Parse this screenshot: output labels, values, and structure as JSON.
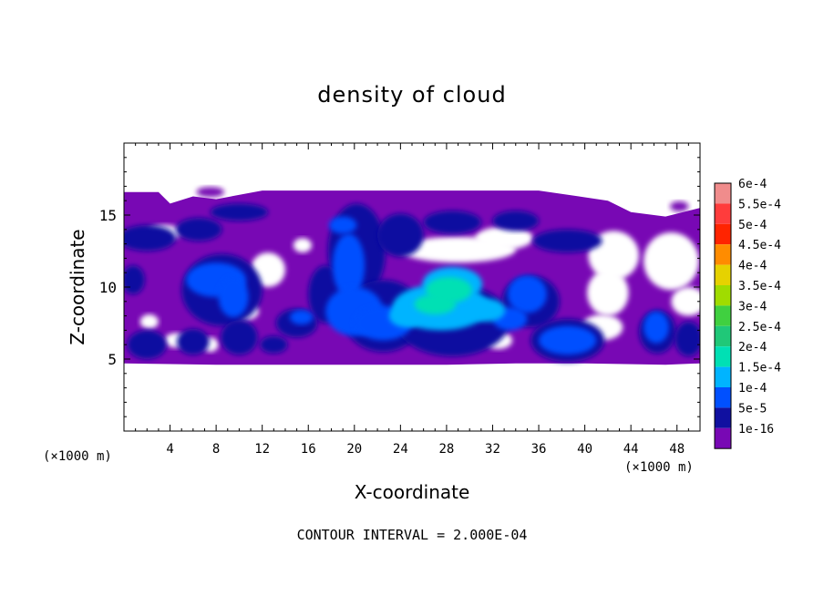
{
  "chart_data": {
    "type": "heatmap",
    "title": "density of cloud",
    "xlabel": "X-coordinate",
    "ylabel": "Z-coordinate",
    "x_unit_left": "(×1000 m)",
    "x_unit_right": "(×1000 m)",
    "xlim": [
      0,
      50
    ],
    "ylim": [
      0,
      20
    ],
    "x_ticks": [
      4,
      8,
      12,
      16,
      20,
      24,
      28,
      32,
      36,
      40,
      44,
      48
    ],
    "y_ticks": [
      5,
      10,
      15
    ],
    "footer": "CONTOUR INTERVAL = 2.000E-04",
    "colorbar": {
      "labels": [
        "6e-4",
        "5.5e-4",
        "5e-4",
        "4.5e-4",
        "4e-4",
        "3.5e-4",
        "3e-4",
        "2.5e-4",
        "2e-4",
        "1.5e-4",
        "1e-4",
        "5e-5",
        "1e-16"
      ],
      "values": [
        0.0006,
        0.00055,
        0.0005,
        0.00045,
        0.0004,
        0.00035,
        0.0003,
        0.00025,
        0.0002,
        0.00015,
        0.0001,
        5e-05,
        1e-16
      ],
      "colors": [
        "#f08c8c",
        "#ff3c3c",
        "#ff2400",
        "#ff8c00",
        "#e6d200",
        "#a0dc00",
        "#40d040",
        "#20c878",
        "#00e0b4",
        "#00b4ff",
        "#0050ff",
        "#1010a0",
        "#7808b4"
      ]
    },
    "features": [
      {
        "x": [
          0,
          50
        ],
        "z": [
          4.7,
          16.6
        ],
        "level": "1e-16"
      },
      {
        "x": [
          17,
          25
        ],
        "z": [
          4.8,
          15.5
        ],
        "level": "1e-4"
      },
      {
        "x": [
          22,
          33
        ],
        "z": [
          6.0,
          11.5
        ],
        "level": "1.5e-4"
      },
      {
        "x": [
          25,
          30
        ],
        "z": [
          7.0,
          10.5
        ],
        "level": "2e-4"
      },
      {
        "x": [
          5,
          11
        ],
        "z": [
          7.5,
          11.5
        ],
        "level": "1e-4"
      },
      {
        "x": [
          36,
          41
        ],
        "z": [
          4.8,
          7.8
        ],
        "level": "1e-4"
      },
      {
        "x": [
          45,
          47.5
        ],
        "z": [
          5.7,
          8.5
        ],
        "level": "1e-4"
      }
    ]
  }
}
